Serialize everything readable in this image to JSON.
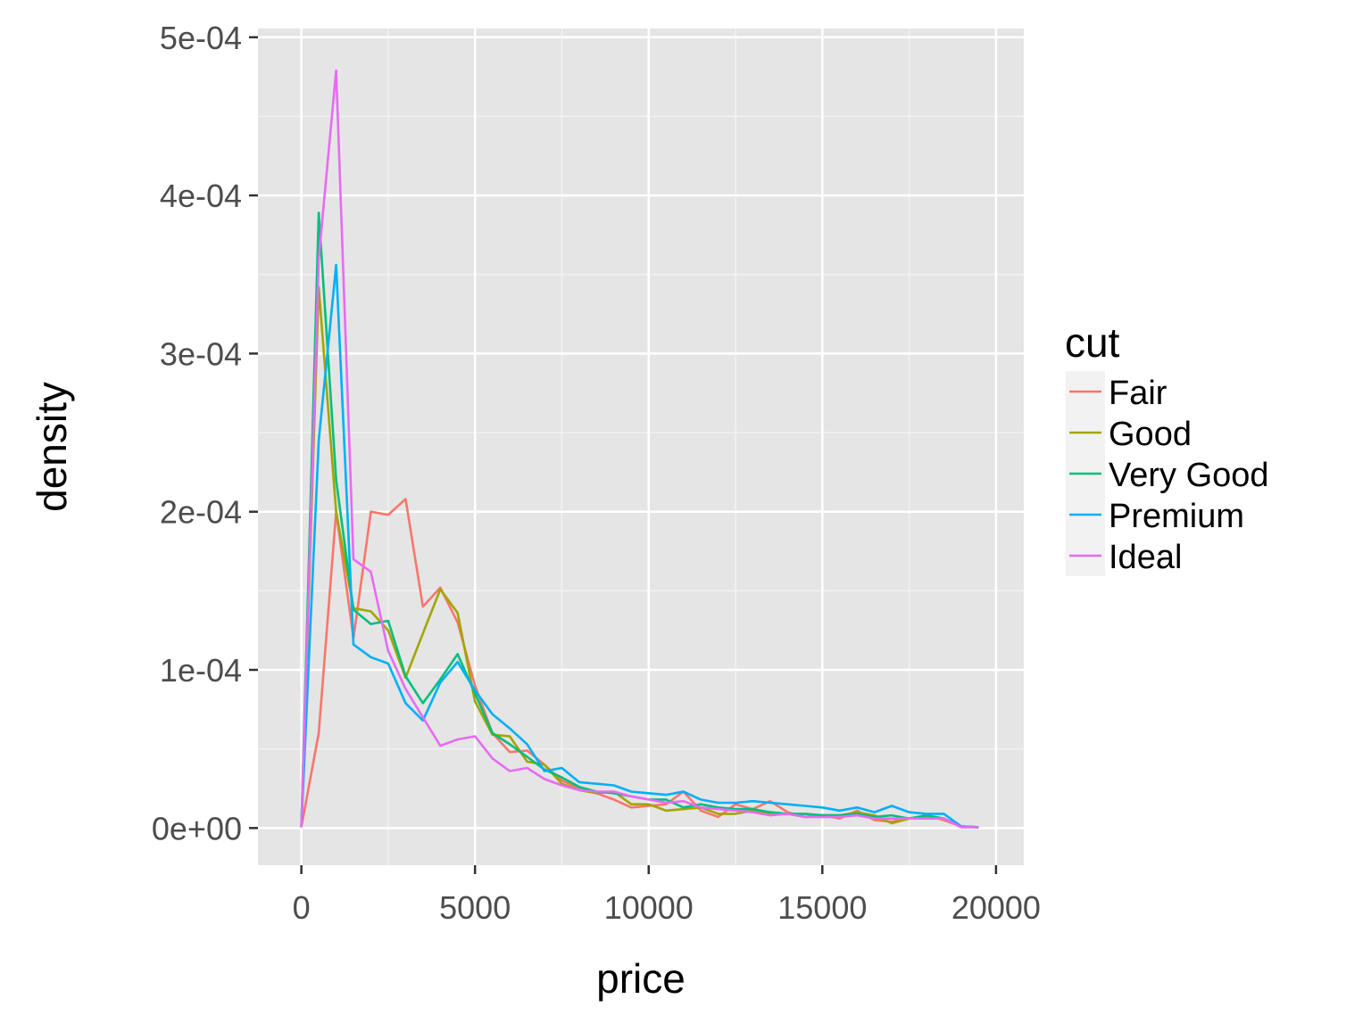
{
  "chart_data": {
    "type": "line",
    "title": "",
    "xlabel": "price",
    "ylabel": "density",
    "xlim": [
      -1250,
      20800
    ],
    "ylim": [
      -2.35e-05,
      0.0005055
    ],
    "x_ticks": [
      0,
      5000,
      10000,
      15000,
      20000
    ],
    "x_tick_labels": [
      "0",
      "5000",
      "10000",
      "15000",
      "20000"
    ],
    "y_ticks": [
      0,
      0.0001,
      0.0002,
      0.0003,
      0.0004,
      0.0005
    ],
    "y_tick_labels": [
      "0e+00",
      "1e-04",
      "2e-04",
      "3e-04",
      "4e-04",
      "5e-04"
    ],
    "grid": true,
    "legend": {
      "title": "cut",
      "position": "right"
    },
    "x": [
      0,
      500,
      1000,
      1500,
      2000,
      2500,
      3000,
      3500,
      4000,
      4500,
      5000,
      5500,
      6000,
      6500,
      7000,
      7500,
      8000,
      8500,
      9000,
      9500,
      10000,
      10500,
      11000,
      11500,
      12000,
      12500,
      13000,
      13500,
      14000,
      14500,
      15000,
      15500,
      16000,
      16500,
      17000,
      17500,
      18000,
      18500,
      19000,
      19500
    ],
    "series": [
      {
        "name": "Fair",
        "color": "#F8766D",
        "values": [
          5e-07,
          6e-05,
          0.0002,
          0.00012,
          0.0002,
          0.000198,
          0.000208,
          0.00014,
          0.000152,
          0.00013,
          9e-05,
          6e-05,
          4.8e-05,
          4.9e-05,
          4e-05,
          3e-05,
          2.5e-05,
          2.2e-05,
          1.8e-05,
          1.3e-05,
          1.4e-05,
          1.5e-05,
          2.3e-05,
          1.1e-05,
          7e-06,
          1.5e-05,
          1.2e-05,
          1.7e-05,
          1e-05,
          7e-06,
          8e-06,
          6e-06,
          1.1e-05,
          5e-06,
          4e-06,
          6e-06,
          8e-06,
          5e-06,
          1e-06,
          5e-07
        ]
      },
      {
        "name": "Good",
        "color": "#A3A500",
        "values": [
          5e-07,
          0.000342,
          0.0002,
          0.000139,
          0.000137,
          0.000125,
          9.5e-05,
          0.000123,
          0.000151,
          0.000136,
          8e-05,
          5.9e-05,
          5.8e-05,
          4.2e-05,
          4e-05,
          2.8e-05,
          2.4e-05,
          2.2e-05,
          2.3e-05,
          1.5e-05,
          1.5e-05,
          1.1e-05,
          1.2e-05,
          1.3e-05,
          9e-06,
          9e-06,
          1.1e-05,
          9e-06,
          9e-06,
          7e-06,
          8e-06,
          8e-06,
          1e-05,
          8e-06,
          3e-06,
          6e-06,
          7e-06,
          6e-06,
          1e-06,
          5e-07
        ]
      },
      {
        "name": "Very Good",
        "color": "#00BF7D",
        "values": [
          5e-07,
          0.000389,
          0.00022,
          0.000138,
          0.000129,
          0.000131,
          9.6e-05,
          7.9e-05,
          9.4e-05,
          0.00011,
          8.5e-05,
          6e-05,
          5.3e-05,
          4.5e-05,
          3.7e-05,
          3.2e-05,
          2.6e-05,
          2.3e-05,
          2.2e-05,
          2e-05,
          1.8e-05,
          1.8e-05,
          1.3e-05,
          1.5e-05,
          1.3e-05,
          1.2e-05,
          1.2e-05,
          1e-05,
          9e-06,
          9e-06,
          8e-06,
          8e-06,
          9e-06,
          7e-06,
          8e-06,
          6e-06,
          8e-06,
          6e-06,
          1e-06,
          5e-07
        ]
      },
      {
        "name": "Premium",
        "color": "#00B0F6",
        "values": [
          5e-07,
          0.000245,
          0.000356,
          0.000116,
          0.000108,
          0.000104,
          7.9e-05,
          6.8e-05,
          9.2e-05,
          0.000105,
          8.7e-05,
          7.2e-05,
          6.3e-05,
          5.3e-05,
          3.6e-05,
          3.8e-05,
          2.9e-05,
          2.8e-05,
          2.7e-05,
          2.3e-05,
          2.2e-05,
          2.1e-05,
          2.3e-05,
          1.8e-05,
          1.6e-05,
          1.6e-05,
          1.7e-05,
          1.6e-05,
          1.5e-05,
          1.4e-05,
          1.3e-05,
          1.1e-05,
          1.3e-05,
          1e-05,
          1.4e-05,
          1e-05,
          9e-06,
          9e-06,
          1e-06,
          5e-07
        ]
      },
      {
        "name": "Ideal",
        "color": "#E76BF3",
        "values": [
          5e-07,
          0.00036,
          0.000479,
          0.00017,
          0.000162,
          0.000112,
          8.8e-05,
          7e-05,
          5.2e-05,
          5.6e-05,
          5.8e-05,
          4.4e-05,
          3.6e-05,
          3.8e-05,
          3.1e-05,
          2.7e-05,
          2.4e-05,
          2.3e-05,
          2.3e-05,
          2e-05,
          1.8e-05,
          1.6e-05,
          1.7e-05,
          1.3e-05,
          1.2e-05,
          1.1e-05,
          1e-05,
          8e-06,
          9e-06,
          7e-06,
          7e-06,
          7e-06,
          8e-06,
          6e-06,
          6e-06,
          6e-06,
          6e-06,
          6e-06,
          5e-07,
          5e-07
        ]
      }
    ]
  }
}
